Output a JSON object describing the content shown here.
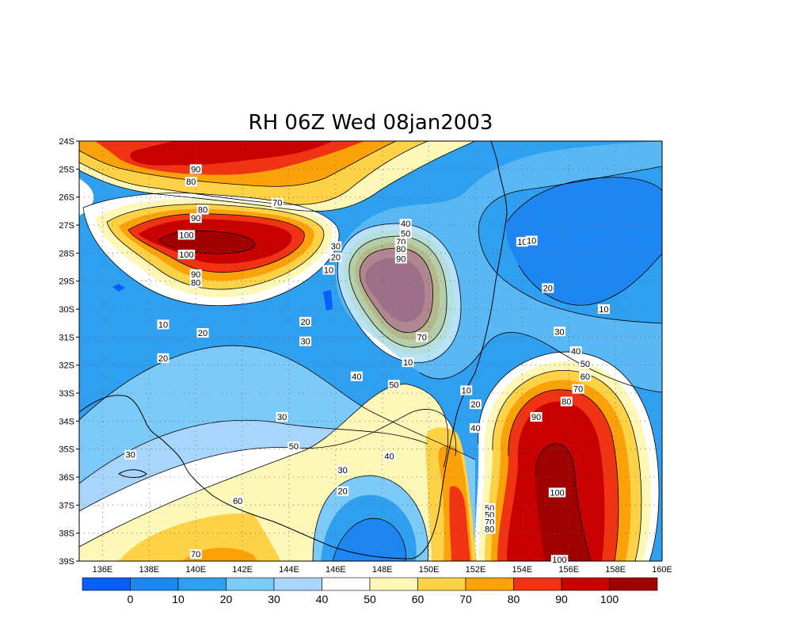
{
  "title": "RH 06Z Wed 08jan2003",
  "map": {
    "variable": "RH",
    "lon_ticks": [
      "136E",
      "138E",
      "140E",
      "142E",
      "144E",
      "146E",
      "148E",
      "150E",
      "152E",
      "154E",
      "156E",
      "158E",
      "160E"
    ],
    "lat_ticks": [
      "24S",
      "25S",
      "26S",
      "27S",
      "28S",
      "29S",
      "30S",
      "31S",
      "32S",
      "33S",
      "34S",
      "35S",
      "36S",
      "37S",
      "38S",
      "39S"
    ],
    "lon_range": [
      135,
      160
    ],
    "lat_range": [
      -39,
      -24
    ],
    "grid": "dotted",
    "contour_labels": [
      {
        "v": "90",
        "lon": 140.0,
        "lat": -25.0
      },
      {
        "v": "80",
        "lon": 139.8,
        "lat": -25.45
      },
      {
        "v": "80",
        "lon": 140.3,
        "lat": -26.45
      },
      {
        "v": "70",
        "lon": 143.5,
        "lat": -26.2
      },
      {
        "v": "90",
        "lon": 140.0,
        "lat": -26.75
      },
      {
        "v": "100",
        "lon": 139.6,
        "lat": -27.35
      },
      {
        "v": "100",
        "lon": 139.6,
        "lat": -28.05
      },
      {
        "v": "90",
        "lon": 140.0,
        "lat": -28.75
      },
      {
        "v": "80",
        "lon": 140.0,
        "lat": -29.05
      },
      {
        "v": "20",
        "lon": 140.3,
        "lat": -30.85
      },
      {
        "v": "10",
        "lon": 138.6,
        "lat": -30.55
      },
      {
        "v": "20",
        "lon": 138.6,
        "lat": -31.75
      },
      {
        "v": "20",
        "lon": 144.7,
        "lat": -30.45
      },
      {
        "v": "30",
        "lon": 144.7,
        "lat": -31.15
      },
      {
        "v": "30",
        "lon": 146.0,
        "lat": -27.75
      },
      {
        "v": "20",
        "lon": 146.0,
        "lat": -28.15
      },
      {
        "v": "10",
        "lon": 145.7,
        "lat": -28.6
      },
      {
        "v": "40",
        "lon": 149.0,
        "lat": -26.95
      },
      {
        "v": "50",
        "lon": 149.0,
        "lat": -27.3
      },
      {
        "v": "70",
        "lon": 148.8,
        "lat": -27.6
      },
      {
        "v": "80",
        "lon": 148.8,
        "lat": -27.85
      },
      {
        "v": "90",
        "lon": 148.8,
        "lat": -28.2
      },
      {
        "v": "70",
        "lon": 149.7,
        "lat": -31.0
      },
      {
        "v": "10",
        "lon": 149.1,
        "lat": -31.9
      },
      {
        "v": "40",
        "lon": 146.9,
        "lat": -32.4
      },
      {
        "v": "50",
        "lon": 148.5,
        "lat": -32.7
      },
      {
        "v": "10",
        "lon": 151.6,
        "lat": -32.9
      },
      {
        "v": "20",
        "lon": 152.0,
        "lat": -33.4
      },
      {
        "v": "40",
        "lon": 152.0,
        "lat": -34.25
      },
      {
        "v": "10",
        "lon": 154.0,
        "lat": -27.6
      },
      {
        "v": "10",
        "lon": 154.4,
        "lat": -27.55
      },
      {
        "v": "20",
        "lon": 155.1,
        "lat": -29.25
      },
      {
        "v": "10",
        "lon": 157.5,
        "lat": -30.0
      },
      {
        "v": "30",
        "lon": 155.6,
        "lat": -30.8
      },
      {
        "v": "40",
        "lon": 156.3,
        "lat": -31.5
      },
      {
        "v": "50",
        "lon": 156.7,
        "lat": -31.95
      },
      {
        "v": "60",
        "lon": 156.7,
        "lat": -32.4
      },
      {
        "v": "70",
        "lon": 156.4,
        "lat": -32.85
      },
      {
        "v": "80",
        "lon": 155.9,
        "lat": -33.3
      },
      {
        "v": "90",
        "lon": 154.6,
        "lat": -33.85
      },
      {
        "v": "100",
        "lon": 155.5,
        "lat": -36.55
      },
      {
        "v": "100",
        "lon": 155.6,
        "lat": -38.95
      },
      {
        "v": "50",
        "lon": 152.6,
        "lat": -37.1
      },
      {
        "v": "50",
        "lon": 152.6,
        "lat": -37.35
      },
      {
        "v": "70",
        "lon": 152.6,
        "lat": -37.6
      },
      {
        "v": "80",
        "lon": 152.6,
        "lat": -37.85
      },
      {
        "v": "30",
        "lon": 143.7,
        "lat": -33.85
      },
      {
        "v": "30",
        "lon": 137.2,
        "lat": -35.2
      },
      {
        "v": "50",
        "lon": 144.2,
        "lat": -34.9
      },
      {
        "v": "40",
        "lon": 148.3,
        "lat": -35.25
      },
      {
        "v": "30",
        "lon": 146.3,
        "lat": -35.75
      },
      {
        "v": "20",
        "lon": 146.3,
        "lat": -36.5
      },
      {
        "v": "60",
        "lon": 141.8,
        "lat": -36.85
      },
      {
        "v": "70",
        "lon": 140.0,
        "lat": -38.75
      }
    ]
  },
  "colorbar": {
    "labels": [
      "0",
      "10",
      "20",
      "30",
      "40",
      "50",
      "60",
      "70",
      "80",
      "90",
      "100"
    ],
    "colors": [
      "#0a5ff7",
      "#1e86f0",
      "#2fa0f0",
      "#7ccaf8",
      "#a8d5fb",
      "#ffffff",
      "#fdf8b8",
      "#fdd246",
      "#fba20a",
      "#f03312",
      "#c80000",
      "#a00000"
    ]
  }
}
